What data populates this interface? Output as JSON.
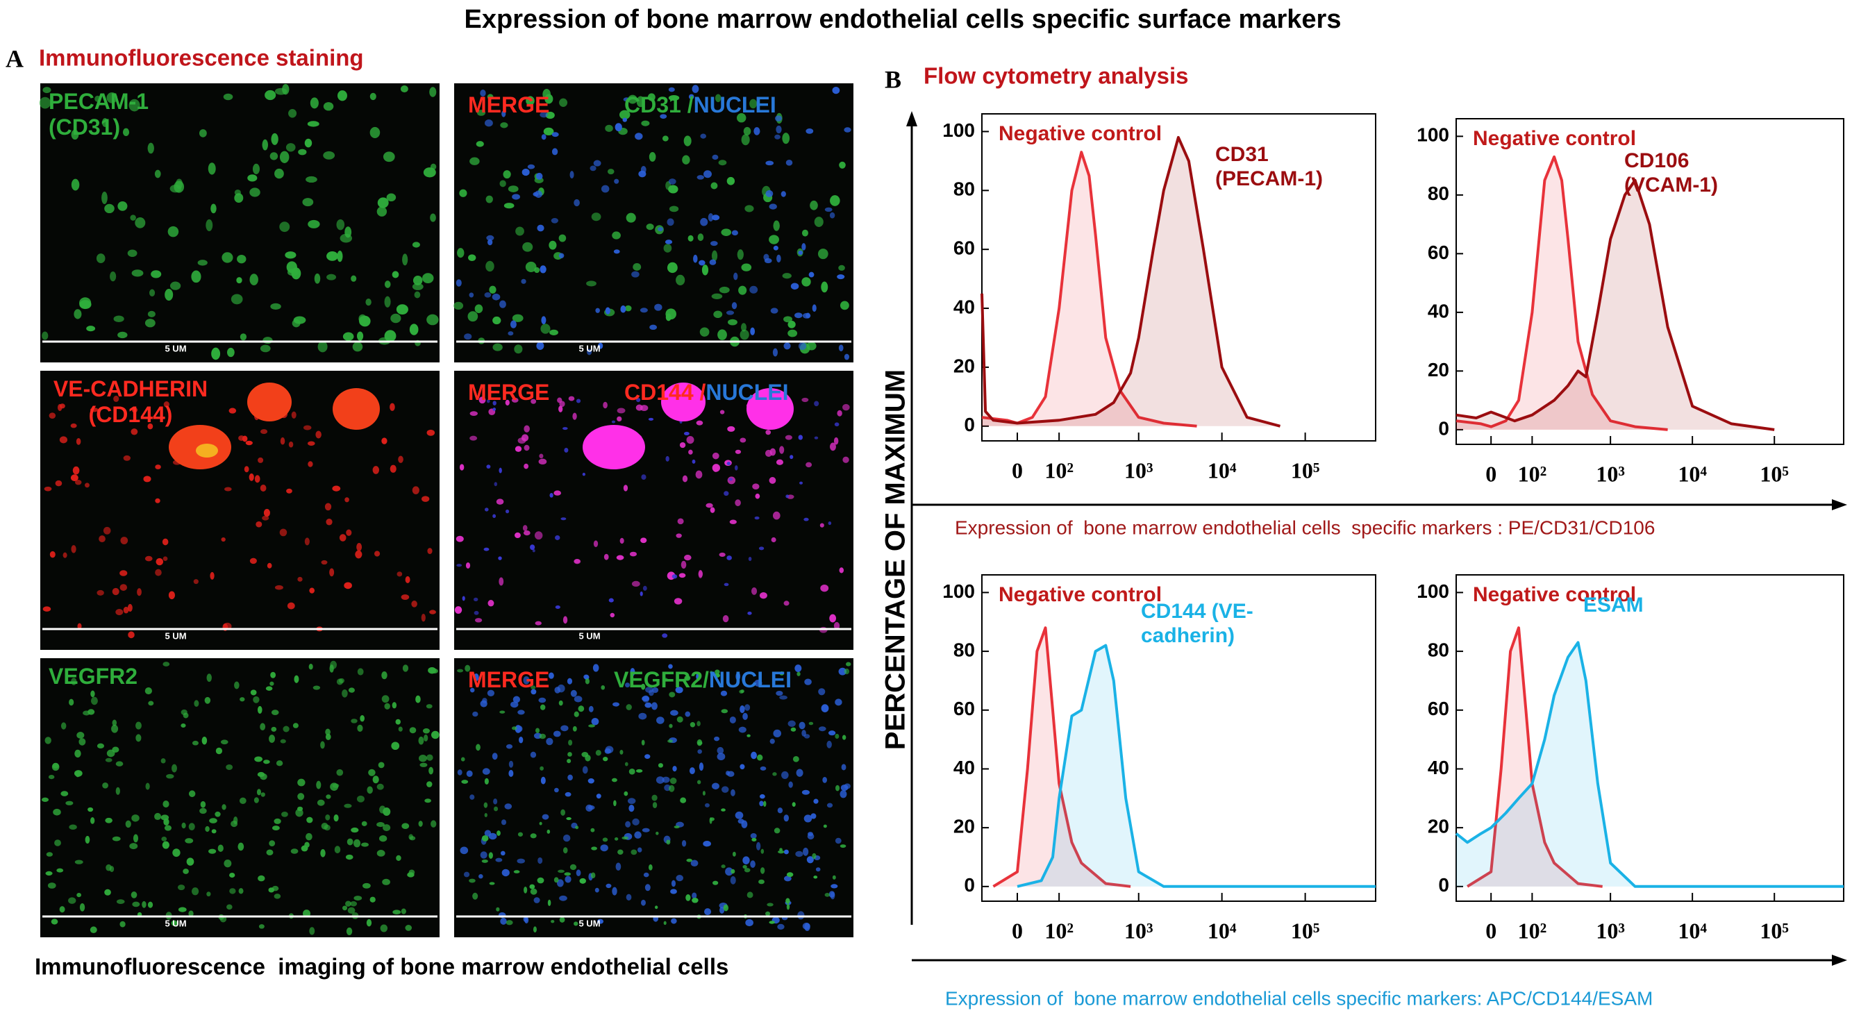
{
  "title": "Expression of bone marrow endothelial cells specific surface markers",
  "panel_a": {
    "letter": "A",
    "title": "Immunofluorescence staining",
    "images": [
      {
        "labels": [
          "PECAM-1 (CD31)"
        ],
        "scale_bar": "5 UM"
      },
      {
        "labels": [
          "MERGE",
          "CD31 /",
          "NUCLEI"
        ],
        "scale_bar": "5 UM"
      },
      {
        "labels": [
          "VE-CADHERIN (CD144)"
        ],
        "scale_bar": "5 UM"
      },
      {
        "labels": [
          "MERGE",
          "CD144 /",
          "NUCLEI"
        ],
        "scale_bar": "5 UM"
      },
      {
        "labels": [
          "VEGFR2"
        ],
        "scale_bar": "5 UM"
      },
      {
        "labels": [
          "MERGE",
          "VEGFR2/",
          "NUCLEI"
        ],
        "scale_bar": "5 UM"
      }
    ],
    "caption": "Immunofluorescence  imaging of bone marrow endothelial cells"
  },
  "panel_b": {
    "letter": "B",
    "title": "Flow cytometry analysis",
    "y_axis_label": "PERCENTAGE OF MAXIMUM",
    "captions": [
      "Expression of  bone marrow endothelial cells  specific markers : PE/CD31/CD106",
      "Expression of  bone marrow endothelial cells specific markers: APC/CD144/ESAM"
    ]
  },
  "chart_data": [
    {
      "type": "line",
      "xscale": "logicle",
      "fill": true,
      "xlim": [
        -80,
        700000
      ],
      "ylim": [
        -5,
        106
      ],
      "xticks": [
        0,
        {
          "value": 100,
          "label": "10²"
        },
        {
          "value": 1000,
          "label": "10³"
        },
        {
          "value": 10000,
          "label": "10⁴"
        },
        {
          "value": 100000,
          "label": "10⁵"
        }
      ],
      "yticks": [
        0,
        20,
        40,
        60,
        80,
        100
      ],
      "series": [
        {
          "name": "Negative control",
          "color": "#e8323a",
          "x": [
            -80,
            -20,
            0,
            30,
            60,
            100,
            150,
            200,
            250,
            300,
            400,
            600,
            1000,
            2000,
            5000
          ],
          "values": [
            3,
            2,
            1,
            3,
            10,
            40,
            80,
            93,
            85,
            65,
            30,
            12,
            3,
            1,
            0
          ]
        },
        {
          "name": "CD31 (PECAM-1)",
          "color": "#9b0d10",
          "x": [
            -80,
            -70,
            -50,
            0,
            100,
            300,
            500,
            800,
            1000,
            1500,
            2000,
            3000,
            4000,
            6000,
            10000,
            20000,
            50000
          ],
          "values": [
            45,
            5,
            2,
            1,
            2,
            4,
            8,
            18,
            30,
            60,
            80,
            98,
            90,
            60,
            20,
            3,
            0
          ]
        }
      ]
    },
    {
      "type": "line",
      "xscale": "logicle",
      "fill": true,
      "xlim": [
        -80,
        700000
      ],
      "ylim": [
        -5,
        106
      ],
      "xticks": [
        0,
        {
          "value": 100,
          "label": "10²"
        },
        {
          "value": 1000,
          "label": "10³"
        },
        {
          "value": 10000,
          "label": "10⁴"
        },
        {
          "value": 100000,
          "label": "10⁵"
        }
      ],
      "yticks": [
        0,
        20,
        40,
        60,
        80,
        100
      ],
      "series": [
        {
          "name": "Negative control",
          "color": "#e8323a",
          "x": [
            -80,
            -20,
            0,
            30,
            60,
            100,
            150,
            200,
            250,
            300,
            400,
            600,
            1000,
            2000,
            5000
          ],
          "values": [
            3,
            2,
            1,
            3,
            10,
            40,
            85,
            93,
            85,
            65,
            30,
            12,
            3,
            1,
            0
          ]
        },
        {
          "name": "CD106 (VCAM-1)",
          "color": "#9b0d10",
          "x": [
            -80,
            -30,
            0,
            50,
            100,
            200,
            300,
            400,
            500,
            700,
            1000,
            1500,
            2000,
            3000,
            5000,
            10000,
            30000,
            100000
          ],
          "values": [
            5,
            4,
            6,
            3,
            5,
            10,
            15,
            20,
            18,
            40,
            65,
            80,
            85,
            70,
            35,
            8,
            2,
            0
          ]
        }
      ]
    },
    {
      "type": "line",
      "xscale": "logicle",
      "fill": true,
      "xlim": [
        -80,
        700000
      ],
      "ylim": [
        -5,
        106
      ],
      "xticks": [
        0,
        {
          "value": 100,
          "label": "10²"
        },
        {
          "value": 1000,
          "label": "10³"
        },
        {
          "value": 10000,
          "label": "10⁴"
        },
        {
          "value": 100000,
          "label": "10⁵"
        }
      ],
      "yticks": [
        0,
        20,
        40,
        60,
        80,
        100
      ],
      "series": [
        {
          "name": "Negative control",
          "color": "#e8323a",
          "x": [
            -50,
            0,
            20,
            40,
            60,
            80,
            100,
            150,
            200,
            400,
            800
          ],
          "values": [
            0,
            5,
            40,
            80,
            88,
            60,
            35,
            15,
            8,
            1,
            0
          ]
        },
        {
          "name": "CD144 (VE-cadherin)",
          "color": "#1ab2e6",
          "x": [
            0,
            50,
            80,
            100,
            150,
            200,
            300,
            400,
            500,
            700,
            1000,
            2000,
            10000,
            700000
          ],
          "values": [
            0,
            2,
            10,
            30,
            58,
            60,
            80,
            82,
            70,
            30,
            5,
            0,
            0,
            0
          ]
        }
      ]
    },
    {
      "type": "line",
      "xscale": "logicle",
      "fill": true,
      "xlim": [
        -80,
        700000
      ],
      "ylim": [
        -5,
        106
      ],
      "xticks": [
        0,
        {
          "value": 100,
          "label": "10²"
        },
        {
          "value": 1000,
          "label": "10³"
        },
        {
          "value": 10000,
          "label": "10⁴"
        },
        {
          "value": 100000,
          "label": "10⁵"
        }
      ],
      "yticks": [
        0,
        20,
        40,
        60,
        80,
        100
      ],
      "series": [
        {
          "name": "Negative control",
          "color": "#e8323a",
          "x": [
            -50,
            0,
            20,
            40,
            60,
            80,
            100,
            150,
            200,
            400,
            800
          ],
          "values": [
            0,
            5,
            40,
            80,
            88,
            60,
            35,
            15,
            8,
            1,
            0
          ]
        },
        {
          "name": "ESAM",
          "color": "#1ab2e6",
          "x": [
            -80,
            -50,
            -20,
            0,
            30,
            60,
            100,
            150,
            200,
            300,
            400,
            500,
            700,
            1000,
            2000,
            10000,
            700000
          ],
          "values": [
            18,
            15,
            18,
            20,
            25,
            30,
            35,
            50,
            65,
            78,
            83,
            70,
            35,
            8,
            0,
            0,
            0
          ]
        }
      ]
    }
  ]
}
